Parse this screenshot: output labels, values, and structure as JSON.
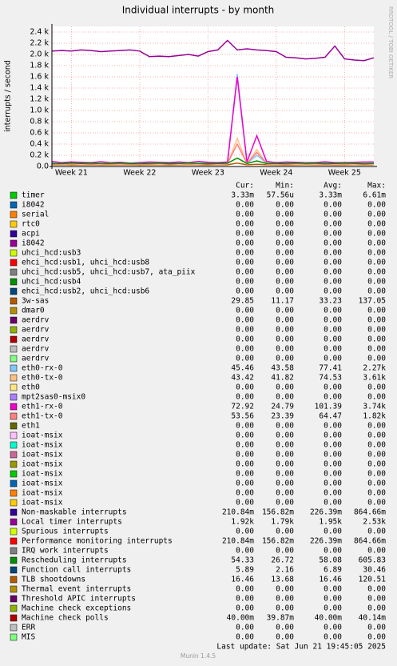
{
  "chart_data": {
    "type": "line",
    "title": "Individual interrupts - by month",
    "y_label": "interrupts / second",
    "side_label": "RRDTOOL / TOBI OETIKER",
    "x": [
      0,
      1,
      2,
      3,
      4,
      5,
      6,
      7,
      8,
      9,
      10,
      11,
      12,
      13,
      14,
      15,
      16,
      17,
      18,
      19,
      20,
      21,
      22,
      23,
      24,
      25,
      26,
      27,
      28,
      29,
      30,
      31,
      32,
      33
    ],
    "xlim": [
      0,
      33
    ],
    "xticks": [
      {
        "value": 2,
        "label": "Week 21"
      },
      {
        "value": 9,
        "label": "Week 22"
      },
      {
        "value": 16,
        "label": "Week 23"
      },
      {
        "value": 23,
        "label": "Week 24"
      },
      {
        "value": 30,
        "label": "Week 25"
      }
    ],
    "ylim": [
      0,
      2500
    ],
    "yticks": [
      {
        "value": 0,
        "label": "0.0"
      },
      {
        "value": 200,
        "label": "0.2 k"
      },
      {
        "value": 400,
        "label": "0.4 k"
      },
      {
        "value": 600,
        "label": "0.6 k"
      },
      {
        "value": 800,
        "label": "0.8 k"
      },
      {
        "value": 1000,
        "label": "1.0 k"
      },
      {
        "value": 1200,
        "label": "1.2 k"
      },
      {
        "value": 1400,
        "label": "1.4 k"
      },
      {
        "value": 1600,
        "label": "1.6 k"
      },
      {
        "value": 1800,
        "label": "1.8 k"
      },
      {
        "value": 2000,
        "label": "2.0 k"
      },
      {
        "value": 2200,
        "label": "2.2 k"
      },
      {
        "value": 2400,
        "label": "2.4 k"
      }
    ],
    "grid": true,
    "columns": [
      "Cur:",
      "Min:",
      "Avg:",
      "Max:"
    ],
    "series": [
      {
        "name": "timer",
        "color": "#00cc00",
        "cur": "3.33m",
        "min": "57.56u",
        "avg": "3.33m",
        "max": "6.61m"
      },
      {
        "name": "i8042",
        "color": "#0066b3",
        "cur": "0.00",
        "min": "0.00",
        "avg": "0.00",
        "max": "0.00"
      },
      {
        "name": "serial",
        "color": "#ff8000",
        "cur": "0.00",
        "min": "0.00",
        "avg": "0.00",
        "max": "0.00"
      },
      {
        "name": "rtc0",
        "color": "#ffcc00",
        "cur": "0.00",
        "min": "0.00",
        "avg": "0.00",
        "max": "0.00"
      },
      {
        "name": "acpi",
        "color": "#330099",
        "cur": "0.00",
        "min": "0.00",
        "avg": "0.00",
        "max": "0.00"
      },
      {
        "name": "i8042",
        "color": "#990099",
        "cur": "0.00",
        "min": "0.00",
        "avg": "0.00",
        "max": "0.00"
      },
      {
        "name": "uhci_hcd:usb3",
        "color": "#ccff00",
        "cur": "0.00",
        "min": "0.00",
        "avg": "0.00",
        "max": "0.00"
      },
      {
        "name": "ehci_hcd:usb1, uhci_hcd:usb8",
        "color": "#ff0000",
        "cur": "0.00",
        "min": "0.00",
        "avg": "0.00",
        "max": "0.00"
      },
      {
        "name": "uhci_hcd:usb5, uhci_hcd:usb7, ata_piix",
        "color": "#808080",
        "cur": "0.00",
        "min": "0.00",
        "avg": "0.00",
        "max": "0.00"
      },
      {
        "name": "uhci_hcd:usb4",
        "color": "#008f00",
        "cur": "0.00",
        "min": "0.00",
        "avg": "0.00",
        "max": "0.00"
      },
      {
        "name": "ehci_hcd:usb2, uhci_hcd:usb6",
        "color": "#00487d",
        "cur": "0.00",
        "min": "0.00",
        "avg": "0.00",
        "max": "0.00"
      },
      {
        "name": "3w-sas",
        "color": "#b35a00",
        "cur": "29.85",
        "min": "11.17",
        "avg": "33.23",
        "max": "137.05",
        "values": [
          30,
          32,
          28,
          30,
          31,
          29,
          30,
          33,
          30,
          28,
          30,
          31,
          29,
          30,
          32,
          30,
          29,
          31,
          30,
          60,
          30,
          40,
          31,
          30,
          29,
          30,
          32,
          30,
          31,
          29,
          30,
          31,
          30,
          30
        ]
      },
      {
        "name": "dmar0",
        "color": "#b38f00",
        "cur": "0.00",
        "min": "0.00",
        "avg": "0.00",
        "max": "0.00"
      },
      {
        "name": "aerdrv",
        "color": "#6b006b",
        "cur": "0.00",
        "min": "0.00",
        "avg": "0.00",
        "max": "0.00"
      },
      {
        "name": "aerdrv",
        "color": "#8fb300",
        "cur": "0.00",
        "min": "0.00",
        "avg": "0.00",
        "max": "0.00"
      },
      {
        "name": "aerdrv",
        "color": "#b30000",
        "cur": "0.00",
        "min": "0.00",
        "avg": "0.00",
        "max": "0.00"
      },
      {
        "name": "aerdrv",
        "color": "#bebebe",
        "cur": "0.00",
        "min": "0.00",
        "avg": "0.00",
        "max": "0.00"
      },
      {
        "name": "aerdrv",
        "color": "#80ff80",
        "cur": "0.00",
        "min": "0.00",
        "avg": "0.00",
        "max": "0.00"
      },
      {
        "name": "eth0-rx-0",
        "color": "#80c9ff",
        "cur": "45.46",
        "min": "43.58",
        "avg": "77.41",
        "max": "2.27k",
        "values": [
          60,
          50,
          55,
          50,
          60,
          55,
          50,
          55,
          50,
          50,
          55,
          50,
          60,
          55,
          50,
          55,
          60,
          50,
          55,
          1650,
          55,
          200,
          60,
          55,
          50,
          55,
          50,
          55,
          60,
          55,
          50,
          55,
          50,
          55
        ]
      },
      {
        "name": "eth0-tx-0",
        "color": "#ffc080",
        "cur": "43.42",
        "min": "41.82",
        "avg": "74.53",
        "max": "3.61k",
        "values": [
          45,
          40,
          45,
          40,
          45,
          40,
          45,
          40,
          45,
          40,
          45,
          40,
          45,
          40,
          45,
          40,
          45,
          40,
          45,
          500,
          45,
          300,
          45,
          40,
          45,
          40,
          45,
          40,
          45,
          40,
          45,
          40,
          45,
          40
        ]
      },
      {
        "name": "eth0",
        "color": "#ffe680",
        "cur": "0.00",
        "min": "0.00",
        "avg": "0.00",
        "max": "0.00"
      },
      {
        "name": "mpt2sas0-msix0",
        "color": "#aa80ff",
        "cur": "0.00",
        "min": "0.00",
        "avg": "0.00",
        "max": "0.00"
      },
      {
        "name": "eth1-rx-0",
        "color": "#ee00cc",
        "cur": "72.92",
        "min": "24.79",
        "avg": "101.39",
        "max": "3.74k",
        "values": [
          90,
          70,
          80,
          75,
          70,
          85,
          70,
          75,
          60,
          70,
          80,
          75,
          70,
          80,
          70,
          90,
          75,
          70,
          80,
          1600,
          80,
          550,
          90,
          70,
          80,
          75,
          70,
          70,
          85,
          70,
          70,
          75,
          80,
          80
        ]
      },
      {
        "name": "eth1-tx-0",
        "color": "#ff8080",
        "cur": "53.56",
        "min": "23.39",
        "avg": "64.47",
        "max": "1.82k",
        "values": [
          55,
          50,
          60,
          55,
          50,
          55,
          60,
          50,
          55,
          50,
          55,
          60,
          50,
          55,
          60,
          50,
          55,
          50,
          55,
          400,
          55,
          250,
          60,
          55,
          50,
          55,
          60,
          50,
          55,
          50,
          55,
          60,
          55,
          55
        ]
      },
      {
        "name": "eth1",
        "color": "#666600",
        "cur": "0.00",
        "min": "0.00",
        "avg": "0.00",
        "max": "0.00"
      },
      {
        "name": "ioat-msix",
        "color": "#ffbfff",
        "cur": "0.00",
        "min": "0.00",
        "avg": "0.00",
        "max": "0.00"
      },
      {
        "name": "ioat-msix",
        "color": "#00ffcc",
        "cur": "0.00",
        "min": "0.00",
        "avg": "0.00",
        "max": "0.00"
      },
      {
        "name": "ioat-msix",
        "color": "#cc6699",
        "cur": "0.00",
        "min": "0.00",
        "avg": "0.00",
        "max": "0.00"
      },
      {
        "name": "ioat-msix",
        "color": "#999900",
        "cur": "0.00",
        "min": "0.00",
        "avg": "0.00",
        "max": "0.00"
      },
      {
        "name": "ioat-msix",
        "color": "#00cc00",
        "cur": "0.00",
        "min": "0.00",
        "avg": "0.00",
        "max": "0.00"
      },
      {
        "name": "ioat-msix",
        "color": "#0066b3",
        "cur": "0.00",
        "min": "0.00",
        "avg": "0.00",
        "max": "0.00"
      },
      {
        "name": "ioat-msix",
        "color": "#ff8000",
        "cur": "0.00",
        "min": "0.00",
        "avg": "0.00",
        "max": "0.00"
      },
      {
        "name": "ioat-msix",
        "color": "#ffcc00",
        "cur": "0.00",
        "min": "0.00",
        "avg": "0.00",
        "max": "0.00"
      },
      {
        "name": "Non-maskable interrupts",
        "color": "#330099",
        "cur": "210.84m",
        "min": "156.82m",
        "avg": "226.39m",
        "max": "864.66m"
      },
      {
        "name": "Local timer interrupts",
        "color": "#990099",
        "cur": "1.92k",
        "min": "1.79k",
        "avg": "1.95k",
        "max": "2.53k",
        "values": [
          2060,
          2070,
          2060,
          2080,
          2070,
          2050,
          2060,
          2070,
          2080,
          2060,
          1960,
          1970,
          1960,
          1980,
          2000,
          1970,
          2050,
          2080,
          2250,
          2080,
          2100,
          2080,
          2070,
          2050,
          1950,
          1940,
          1920,
          1930,
          1950,
          2150,
          1920,
          1900,
          1890,
          1940
        ]
      },
      {
        "name": "Spurious interrupts",
        "color": "#ccff00",
        "cur": "0.00",
        "min": "0.00",
        "avg": "0.00",
        "max": "0.00"
      },
      {
        "name": "Performance monitoring interrupts",
        "color": "#ff0000",
        "cur": "210.84m",
        "min": "156.82m",
        "avg": "226.39m",
        "max": "864.66m"
      },
      {
        "name": "IRQ work interrupts",
        "color": "#808080",
        "cur": "0.00",
        "min": "0.00",
        "avg": "0.00",
        "max": "0.00"
      },
      {
        "name": "Rescheduling interrupts",
        "color": "#008f00",
        "cur": "54.33",
        "min": "26.72",
        "avg": "58.08",
        "max": "605.83",
        "values": [
          55,
          50,
          60,
          55,
          58,
          52,
          55,
          60,
          55,
          50,
          55,
          58,
          52,
          55,
          60,
          55,
          50,
          55,
          58,
          150,
          55,
          100,
          55,
          52,
          55,
          60,
          55,
          58,
          52,
          55,
          60,
          55,
          50,
          55
        ]
      },
      {
        "name": "Function call interrupts",
        "color": "#00487d",
        "cur": "5.89",
        "min": "2.16",
        "avg": "6.89",
        "max": "30.46"
      },
      {
        "name": "TLB shootdowns",
        "color": "#b35a00",
        "cur": "16.46",
        "min": "13.68",
        "avg": "16.46",
        "max": "120.51"
      },
      {
        "name": "Thermal event interrupts",
        "color": "#b38f00",
        "cur": "0.00",
        "min": "0.00",
        "avg": "0.00",
        "max": "0.00"
      },
      {
        "name": "Threshold APIC interrupts",
        "color": "#6b006b",
        "cur": "0.00",
        "min": "0.00",
        "avg": "0.00",
        "max": "0.00"
      },
      {
        "name": "Machine check exceptions",
        "color": "#8fb300",
        "cur": "0.00",
        "min": "0.00",
        "avg": "0.00",
        "max": "0.00"
      },
      {
        "name": "Machine check polls",
        "color": "#b30000",
        "cur": "40.00m",
        "min": "39.87m",
        "avg": "40.00m",
        "max": "40.14m"
      },
      {
        "name": "ERR",
        "color": "#bebebe",
        "cur": "0.00",
        "min": "0.00",
        "avg": "0.00",
        "max": "0.00"
      },
      {
        "name": "MIS",
        "color": "#80ff80",
        "cur": "0.00",
        "min": "0.00",
        "avg": "0.00",
        "max": "0.00"
      }
    ],
    "last_update": "Last update:  Sat Jun 21 19:45:05 2025",
    "version": "Munin 1.4.5"
  }
}
